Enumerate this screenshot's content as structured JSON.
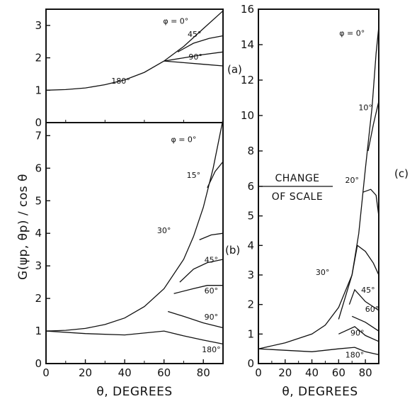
{
  "chart_data": [
    {
      "id": "a",
      "type": "line",
      "panel_label": "(a)",
      "xlim": [
        0,
        90
      ],
      "ylim": [
        0,
        3.5
      ],
      "x_ticks": [],
      "y_ticks": [
        0,
        1,
        2,
        3
      ],
      "grid": false,
      "legend": "none",
      "series": [
        {
          "name": "φ = 0°",
          "points": [
            [
              0,
              1
            ],
            [
              10,
              1.02
            ],
            [
              20,
              1.07
            ],
            [
              30,
              1.17
            ],
            [
              40,
              1.32
            ],
            [
              50,
              1.55
            ],
            [
              60,
              1.9
            ],
            [
              70,
              2.35
            ],
            [
              80,
              2.9
            ],
            [
              90,
              3.45
            ]
          ]
        },
        {
          "name": "45°",
          "points": [
            [
              67,
              2.18
            ],
            [
              75,
              2.45
            ],
            [
              83,
              2.6
            ],
            [
              90,
              2.68
            ]
          ]
        },
        {
          "name": "90°",
          "points": [
            [
              60,
              1.9
            ],
            [
              70,
              2.0
            ],
            [
              80,
              2.1
            ],
            [
              90,
              2.18
            ]
          ]
        },
        {
          "name": "180°",
          "points": [
            [
              60,
              1.9
            ],
            [
              70,
              1.85
            ],
            [
              80,
              1.8
            ],
            [
              90,
              1.75
            ]
          ]
        }
      ],
      "annotations": [
        {
          "text": "φ = 0°",
          "x": 66,
          "y": 3.05
        },
        {
          "text": "45°",
          "x": 75.5,
          "y": 2.65
        },
        {
          "text": "90°",
          "x": 76,
          "y": 1.95
        },
        {
          "text": "180°",
          "x": 38,
          "y": 1.2
        }
      ]
    },
    {
      "id": "b",
      "type": "line",
      "panel_label": "(b)",
      "ylabel": "G(ψp, θp) / cos θ",
      "xlabel": "θ, DEGREES",
      "xlim": [
        0,
        90
      ],
      "ylim": [
        0,
        7.4
      ],
      "x_ticks": [
        0,
        20,
        40,
        60,
        80
      ],
      "y_ticks": [
        0,
        1,
        2,
        3,
        4,
        5,
        6,
        7
      ],
      "grid": false,
      "legend": "none",
      "series": [
        {
          "name": "φ = 0°",
          "points": [
            [
              0,
              1
            ],
            [
              10,
              1.02
            ],
            [
              20,
              1.08
            ],
            [
              30,
              1.2
            ],
            [
              40,
              1.4
            ],
            [
              50,
              1.75
            ],
            [
              60,
              2.3
            ],
            [
              70,
              3.2
            ],
            [
              75,
              3.9
            ],
            [
              80,
              4.8
            ],
            [
              85,
              6.0
            ],
            [
              90,
              7.5
            ]
          ]
        },
        {
          "name": "15°",
          "points": [
            [
              82,
              5.4
            ],
            [
              86,
              5.9
            ],
            [
              90,
              6.2
            ]
          ]
        },
        {
          "name": "30°",
          "points": [
            [
              78,
              3.8
            ],
            [
              84,
              3.95
            ],
            [
              90,
              4.0
            ]
          ]
        },
        {
          "name": "45°",
          "points": [
            [
              68,
              2.5
            ],
            [
              75,
              2.9
            ],
            [
              82,
              3.1
            ],
            [
              90,
              3.2
            ]
          ]
        },
        {
          "name": "60°",
          "points": [
            [
              65,
              2.15
            ],
            [
              75,
              2.3
            ],
            [
              82,
              2.4
            ],
            [
              90,
              2.4
            ]
          ]
        },
        {
          "name": "90°",
          "points": [
            [
              62,
              1.6
            ],
            [
              70,
              1.45
            ],
            [
              80,
              1.25
            ],
            [
              90,
              1.1
            ]
          ]
        },
        {
          "name": "180°",
          "points": [
            [
              0,
              1
            ],
            [
              20,
              0.92
            ],
            [
              40,
              0.88
            ],
            [
              60,
              1.0
            ],
            [
              70,
              0.85
            ],
            [
              80,
              0.72
            ],
            [
              90,
              0.6
            ]
          ]
        }
      ],
      "annotations": [
        {
          "text": "φ = 0°",
          "x": 70,
          "y": 6.8
        },
        {
          "text": "15°",
          "x": 75,
          "y": 5.7
        },
        {
          "text": "30°",
          "x": 60,
          "y": 4.0
        },
        {
          "text": "45°",
          "x": 84,
          "y": 3.1
        },
        {
          "text": "60°",
          "x": 84,
          "y": 2.15
        },
        {
          "text": "90°",
          "x": 84,
          "y": 1.35
        },
        {
          "text": "180°",
          "x": 84,
          "y": 0.35
        }
      ]
    },
    {
      "id": "c",
      "type": "line",
      "panel_label": "(c)",
      "xlabel": "θ, DEGREES",
      "xlim": [
        0,
        90
      ],
      "ylim": [
        0,
        16
      ],
      "x_ticks": [
        0,
        20,
        40,
        60,
        80
      ],
      "y_ticks": [
        0,
        1,
        2,
        3,
        4,
        5,
        6,
        8,
        10,
        12,
        14,
        16
      ],
      "scale_break": {
        "note_line1": "CHANGE",
        "note_line2": "OF SCALE",
        "at_y": 6
      },
      "grid": false,
      "legend": "none",
      "series": [
        {
          "name": "φ = 0°",
          "points": [
            [
              0,
              0.5
            ],
            [
              20,
              0.7
            ],
            [
              40,
              1.0
            ],
            [
              50,
              1.3
            ],
            [
              60,
              1.9
            ],
            [
              70,
              3.0
            ],
            [
              75,
              4.4
            ],
            [
              80,
              7.0
            ],
            [
              85,
              10.5
            ],
            [
              88,
              13.5
            ],
            [
              90,
              15
            ]
          ]
        },
        {
          "name": "10°",
          "points": [
            [
              82,
              8.0
            ],
            [
              86,
              9.5
            ],
            [
              90,
              10.8
            ]
          ]
        },
        {
          "name": "20°",
          "points": [
            [
              78,
              5.8
            ],
            [
              84,
              5.9
            ],
            [
              88,
              5.7
            ],
            [
              90,
              5.0
            ]
          ]
        },
        {
          "name": "30°",
          "points": [
            [
              60,
              1.5
            ],
            [
              70,
              3.0
            ],
            [
              74,
              4.0
            ],
            [
              80,
              3.8
            ],
            [
              86,
              3.4
            ],
            [
              90,
              3.0
            ]
          ]
        },
        {
          "name": "45°",
          "points": [
            [
              68,
              2.0
            ],
            [
              72,
              2.5
            ],
            [
              80,
              2.1
            ],
            [
              90,
              1.8
            ]
          ]
        },
        {
          "name": "60°",
          "points": [
            [
              70,
              1.6
            ],
            [
              80,
              1.4
            ],
            [
              90,
              1.1
            ]
          ]
        },
        {
          "name": "90°",
          "points": [
            [
              60,
              1.0
            ],
            [
              72,
              1.25
            ],
            [
              80,
              0.95
            ],
            [
              90,
              0.75
            ]
          ]
        },
        {
          "name": "180°",
          "points": [
            [
              0,
              0.5
            ],
            [
              40,
              0.4
            ],
            [
              60,
              0.5
            ],
            [
              72,
              0.55
            ],
            [
              80,
              0.4
            ],
            [
              90,
              0.3
            ]
          ]
        }
      ],
      "annotations": [
        {
          "text": "φ = 0°",
          "x": 70,
          "y": 14.5
        },
        {
          "text": "10°",
          "x": 80,
          "y": 10.3
        },
        {
          "text": "20°",
          "x": 70,
          "y": 6.2
        },
        {
          "text": "30°",
          "x": 48,
          "y": 3.0
        },
        {
          "text": "45°",
          "x": 82,
          "y": 2.4
        },
        {
          "text": "60°",
          "x": 85,
          "y": 1.75
        },
        {
          "text": "90°",
          "x": 74,
          "y": 0.95
        },
        {
          "text": "180°",
          "x": 72,
          "y": 0.2
        }
      ]
    }
  ]
}
